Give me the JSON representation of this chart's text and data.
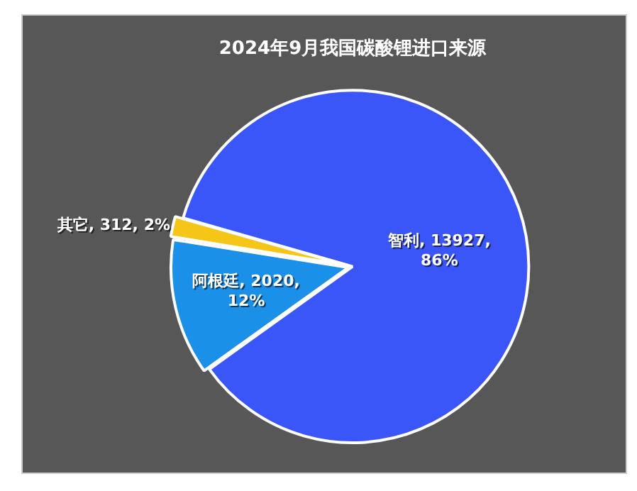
{
  "chart_data": {
    "type": "pie",
    "title": "2024年9月我国碳酸锂进口来源",
    "categories": [
      "智利",
      "阿根廷",
      "其它"
    ],
    "values": [
      13927,
      2020,
      312
    ],
    "colors": [
      "#3a55f8",
      "#1a90e8",
      "#f5c518"
    ],
    "value_labels": [
      "13927, 86%",
      "2020, 12%",
      "312, 2%"
    ],
    "legend": false
  }
}
